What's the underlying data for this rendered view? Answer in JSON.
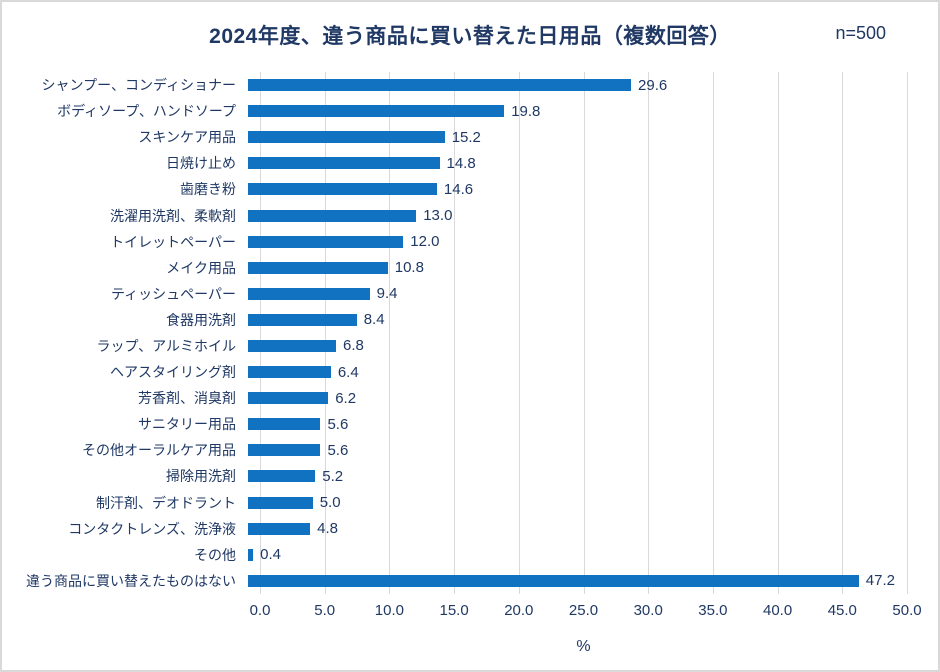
{
  "page": {
    "title": "2024年度、違う商品に買い替えた日用品（複数回答）",
    "sample_label": "n=500"
  },
  "chart_data": {
    "type": "bar",
    "orientation": "horizontal",
    "title": "2024年度、違う商品に買い替えた日用品（複数回答）",
    "sample_size": "n=500",
    "categories": [
      "シャンプー、コンディショナー",
      "ボディソープ、ハンドソープ",
      "スキンケア用品",
      "日焼け止め",
      "歯磨き粉",
      "洗濯用洗剤、柔軟剤",
      "トイレットペーパー",
      "メイク用品",
      "ティッシュペーパー",
      "食器用洗剤",
      "ラップ、アルミホイル",
      "ヘアスタイリング剤",
      "芳香剤、消臭剤",
      "サニタリー用品",
      "その他オーラルケア用品",
      "掃除用洗剤",
      "制汗剤、デオドラント",
      "コンタクトレンズ、洗浄液",
      "その他",
      "違う商品に買い替えたものはない"
    ],
    "values": [
      29.6,
      19.8,
      15.2,
      14.8,
      14.6,
      13.0,
      12.0,
      10.8,
      9.4,
      8.4,
      6.8,
      6.4,
      6.2,
      5.6,
      5.6,
      5.2,
      5.0,
      4.8,
      0.4,
      47.2
    ],
    "value_labels": [
      "29.6",
      "19.8",
      "15.2",
      "14.8",
      "14.6",
      "13.0",
      "12.0",
      "10.8",
      "9.4",
      "8.4",
      "6.8",
      "6.4",
      "6.2",
      "5.6",
      "5.6",
      "5.2",
      "5.0",
      "4.8",
      "0.4",
      "47.2"
    ],
    "xlabel": "%",
    "xlim": [
      0,
      50
    ],
    "xticks": [
      0,
      5,
      10,
      15,
      20,
      25,
      30,
      35,
      40,
      45,
      50
    ],
    "xtick_labels": [
      "0.0",
      "5.0",
      "10.0",
      "15.0",
      "20.0",
      "25.0",
      "30.0",
      "35.0",
      "40.0",
      "45.0",
      "50.0"
    ],
    "grid": "vertical",
    "legend": "none",
    "colors": {
      "bar": "#1272c2",
      "text": "#1f3864",
      "gridline": "#d9d9d9",
      "frame_border": "#d9d9d9",
      "background": "#ffffff"
    }
  }
}
